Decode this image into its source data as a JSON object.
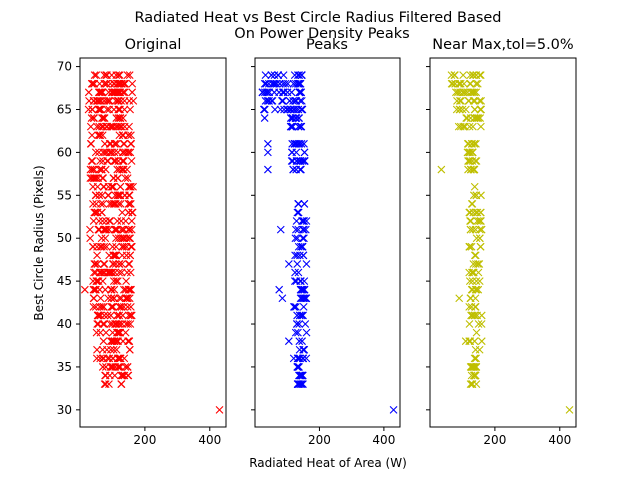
{
  "figure": {
    "title_line1": "Radiated Heat vs Best Circle Radius Filtered Based",
    "title_line2": "On Power Density Peaks",
    "xlabel": "Radiated Heat of Area (W)",
    "ylabel": "Best Circle Radius (Pixels)"
  },
  "chart_data": [
    {
      "type": "scatter",
      "title": "Original",
      "color": "#ff0000",
      "marker": "x",
      "xlim": [
        0,
        450
      ],
      "ylim": [
        28,
        71
      ],
      "xticks": [
        200,
        400
      ],
      "yticks": [
        30,
        35,
        40,
        45,
        50,
        55,
        60,
        65,
        70
      ],
      "clusters": [
        {
          "x": [
            20,
            165
          ],
          "y": [
            68,
            69
          ]
        },
        {
          "x": [
            25,
            165
          ],
          "y": [
            64,
            68
          ]
        },
        {
          "x": [
            30,
            160
          ],
          "y": [
            56,
            64
          ]
        },
        {
          "x": [
            30,
            165
          ],
          "y": [
            48,
            56
          ]
        },
        {
          "x": [
            40,
            160
          ],
          "y": [
            42,
            48
          ]
        },
        {
          "x": [
            50,
            160
          ],
          "y": [
            36,
            42
          ]
        },
        {
          "x": [
            70,
            155
          ],
          "y": [
            33,
            36
          ]
        }
      ],
      "points": [
        [
          430,
          30
        ],
        [
          15,
          44
        ]
      ]
    },
    {
      "type": "scatter",
      "title": "Peaks",
      "color": "#0000ff",
      "marker": "x",
      "xlim": [
        0,
        450
      ],
      "ylim": [
        28,
        71
      ],
      "xticks": [
        200,
        400
      ],
      "yticks": [
        30,
        35,
        40,
        45,
        50,
        55,
        60,
        65,
        70
      ],
      "clusters": [
        {
          "x": [
            10,
            150
          ],
          "y": [
            68,
            69
          ]
        },
        {
          "x": [
            20,
            150
          ],
          "y": [
            65,
            68
          ]
        },
        {
          "x": [
            110,
            150
          ],
          "y": [
            63,
            65
          ]
        },
        {
          "x": [
            110,
            155
          ],
          "y": [
            58,
            61
          ]
        },
        {
          "x": [
            120,
            160
          ],
          "y": [
            36,
            56
          ]
        },
        {
          "x": [
            130,
            150
          ],
          "y": [
            33,
            36
          ]
        }
      ],
      "points": [
        [
          430,
          30
        ],
        [
          40,
          61
        ],
        [
          40,
          60
        ],
        [
          40,
          58
        ],
        [
          80,
          51
        ],
        [
          105,
          47
        ],
        [
          75,
          44
        ],
        [
          85,
          43
        ],
        [
          105,
          38
        ],
        [
          30,
          65
        ],
        [
          30,
          64
        ]
      ]
    },
    {
      "type": "scatter",
      "title": "Near Max,tol=5.0%",
      "color": "#bfbf00",
      "marker": "x",
      "xlim": [
        0,
        450
      ],
      "ylim": [
        28,
        71
      ],
      "xticks": [
        200,
        400
      ],
      "yticks": [
        30,
        35,
        40,
        45,
        50,
        55,
        60,
        65,
        70
      ],
      "clusters": [
        {
          "x": [
            60,
            160
          ],
          "y": [
            67,
            69
          ]
        },
        {
          "x": [
            80,
            160
          ],
          "y": [
            63,
            67
          ]
        },
        {
          "x": [
            115,
            145
          ],
          "y": [
            58,
            61
          ]
        },
        {
          "x": [
            120,
            160
          ],
          "y": [
            36,
            56
          ]
        },
        {
          "x": [
            125,
            145
          ],
          "y": [
            33,
            36
          ]
        }
      ],
      "points": [
        [
          430,
          30
        ],
        [
          35,
          58
        ],
        [
          90,
          43
        ],
        [
          70,
          68
        ],
        [
          110,
          38
        ]
      ]
    }
  ]
}
